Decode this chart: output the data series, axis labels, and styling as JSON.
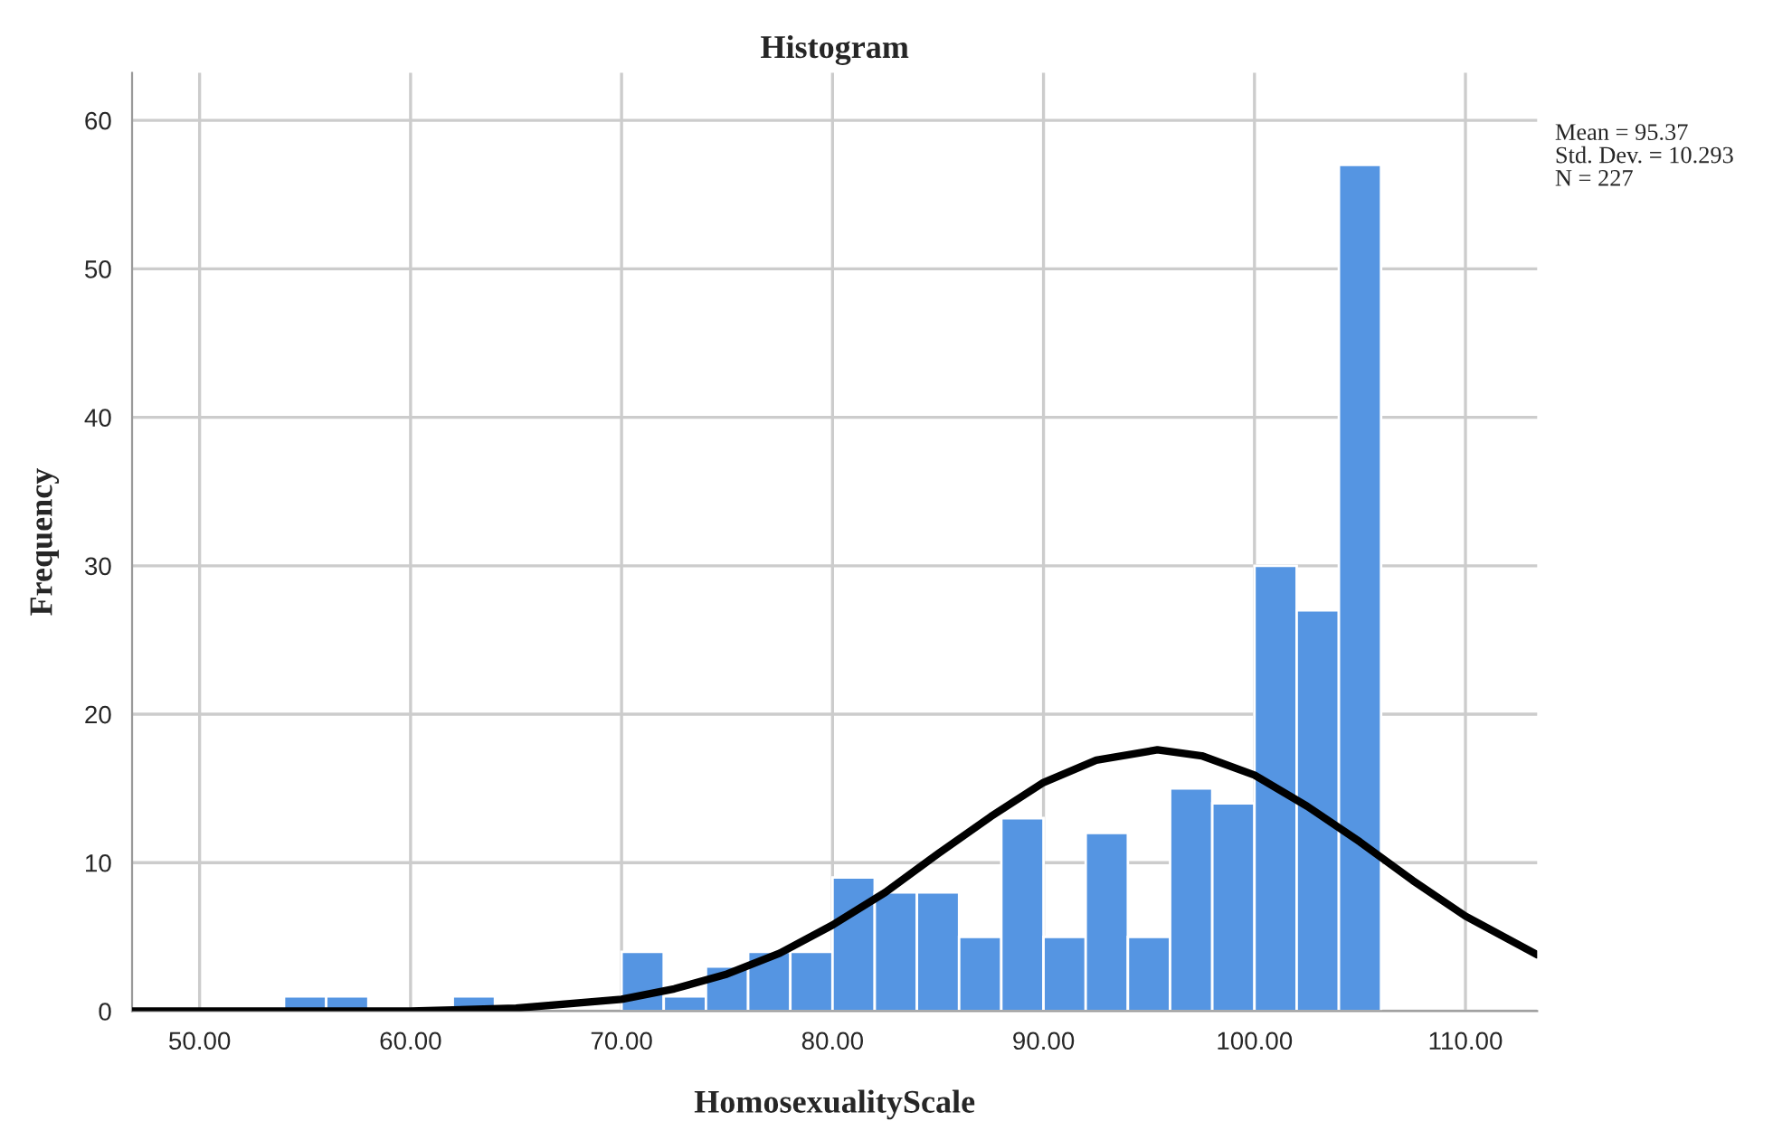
{
  "chart_data": {
    "type": "histogram",
    "title": "Histogram",
    "xlabel": "HomosexualityScale",
    "ylabel": "Frequency",
    "bins": [
      54,
      56,
      58,
      60,
      62,
      64,
      66,
      68,
      70,
      72,
      74,
      76,
      78,
      80,
      82,
      84,
      86,
      88,
      90,
      92,
      94,
      96,
      98,
      100,
      102,
      104,
      106
    ],
    "values": [
      1,
      1,
      0,
      0,
      1,
      0,
      0,
      0,
      4,
      1,
      3,
      4,
      4,
      9,
      8,
      8,
      5,
      13,
      5,
      12,
      5,
      15,
      14,
      30,
      27,
      57
    ],
    "color": "#5595e2",
    "series": [
      {
        "type": "line",
        "color": "#000000",
        "x": [
          46.8,
          55,
          60,
          65,
          70,
          72.5,
          75,
          77.5,
          80,
          82.5,
          85,
          87.5,
          90,
          92.5,
          95.4,
          97.5,
          100,
          102.5,
          105,
          107.5,
          110,
          113.4
        ],
        "values": [
          0,
          0,
          0,
          0.2,
          0.8,
          1.5,
          2.5,
          3.9,
          5.8,
          8.0,
          10.6,
          13.1,
          15.4,
          16.9,
          17.6,
          17.2,
          15.9,
          13.8,
          11.4,
          8.8,
          6.4,
          3.8
        ]
      }
    ],
    "xlim": [
      46.8,
      113.4
    ],
    "ylim": [
      0,
      63.2
    ],
    "xticks": [
      {
        "value": 50,
        "label": "50.00"
      },
      {
        "value": 60,
        "label": "60.00"
      },
      {
        "value": 70,
        "label": "70.00"
      },
      {
        "value": 80,
        "label": "80.00"
      },
      {
        "value": 90,
        "label": "90.00"
      },
      {
        "value": 100,
        "label": "100.00"
      },
      {
        "value": 110,
        "label": "110.00"
      }
    ],
    "yticks": [
      0,
      10,
      20,
      30,
      40,
      50,
      60
    ],
    "grid": true,
    "annotations": [
      "Mean = 95.37",
      "Std. Dev. = 10.293",
      "N = 227"
    ]
  }
}
